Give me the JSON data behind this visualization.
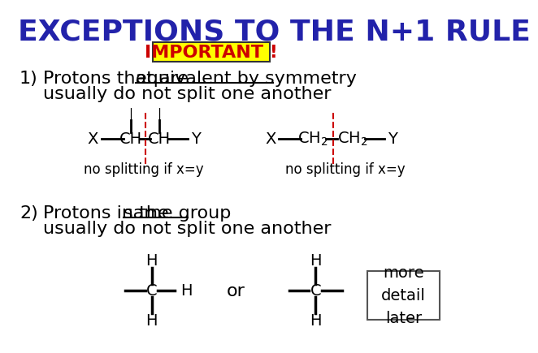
{
  "bg_color": "#ffffff",
  "title": "EXCEPTIONS TO THE N+1 RULE",
  "title_color": "#2222aa",
  "title_fontsize": 26,
  "important_text": "IMPORTANT !",
  "important_bg": "#ffff00",
  "important_text_color": "#cc0000",
  "important_fontsize": 16,
  "no_split_text": "no splitting if x=y",
  "more_detail_text": "more\ndetail\nlater"
}
